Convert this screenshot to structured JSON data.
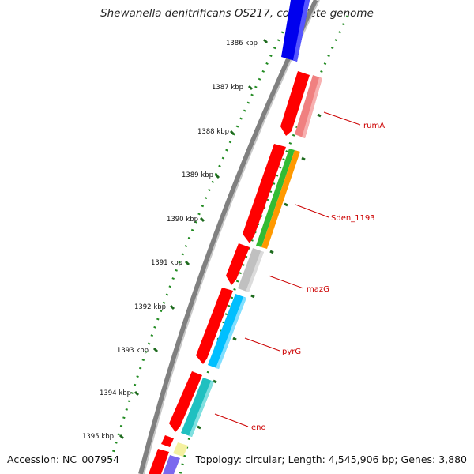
{
  "title": "Shewanella denitrificans OS217, complete genome",
  "accession": "Accession: NC_007954",
  "summary": "Topology: circular; Length: 4,545,906 bp; Genes: 3,880",
  "ticks": [
    "1386 kbp",
    "1387 kbp",
    "1388 kbp",
    "1389 kbp",
    "1390 kbp",
    "1391 kbp",
    "1392 kbp",
    "1393 kbp",
    "1394 kbp",
    "1395 kbp"
  ],
  "gene_labels": [
    "rumA",
    "Sden_1193",
    "mazG",
    "pyrG",
    "eno"
  ],
  "colors": {
    "cds_forward": "#ff0000",
    "rumA": "#f08080",
    "Sden_1193_a": "#33bb33",
    "Sden_1193_b": "#ff9900",
    "mazG": "#c0c0c0",
    "pyrG": "#00bfff",
    "eno": "#20c0c0",
    "blue_gene": "#0000ee",
    "yellow_gene": "#f4f0a0",
    "purple_gene": "#7b68ee",
    "backbone": "#808080",
    "dots": "#228b22",
    "label_line": "#cc0000"
  }
}
